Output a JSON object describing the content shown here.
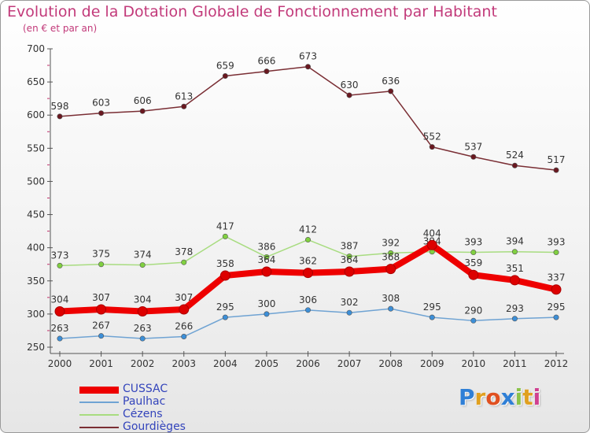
{
  "header": {
    "title": "Evolution de la Dotation Globale de Fonctionnement par Habitant",
    "subtitle": "(en € et par an)"
  },
  "logo": {
    "text": "Proxiti",
    "letters": [
      "P",
      "r",
      "o",
      "x",
      "i",
      "t",
      "i"
    ],
    "colors": [
      "#2f7fd6",
      "#e0a020",
      "#e05020",
      "#2f7fd6",
      "#8bc34a",
      "#e0a020",
      "#d04090"
    ]
  },
  "chart_data": {
    "type": "line",
    "title": "Evolution de la Dotation Globale de Fonctionnement par Habitant",
    "subtitle": "(en € et par an)",
    "x": [
      "2000",
      "2001",
      "2002",
      "2003",
      "2004",
      "2005",
      "2006",
      "2007",
      "2008",
      "2009",
      "2010",
      "2011",
      "2012"
    ],
    "ylim": [
      250,
      700
    ],
    "yticks": [
      250,
      300,
      350,
      400,
      450,
      500,
      550,
      600,
      650,
      700
    ],
    "grid": false,
    "legend_position": "bottom-left",
    "series": [
      {
        "name": "CUSSAC",
        "color": "#ee0000",
        "line_width": 8,
        "marker_color": "#dd0000",
        "values": [
          304,
          307,
          304,
          307,
          358,
          364,
          362,
          364,
          368,
          404,
          359,
          351,
          337
        ]
      },
      {
        "name": "Paulhac",
        "color": "#6fa3d3",
        "line_width": 1.5,
        "marker_color": "#3c8fd8",
        "values": [
          263,
          267,
          263,
          266,
          295,
          300,
          306,
          302,
          308,
          295,
          290,
          293,
          295
        ]
      },
      {
        "name": "Cézens",
        "color": "#a8dc80",
        "line_width": 1.5,
        "marker_color": "#80d040",
        "values": [
          373,
          375,
          374,
          378,
          417,
          386,
          412,
          387,
          392,
          394,
          393,
          394,
          393
        ]
      },
      {
        "name": "Gourdièges",
        "color": "#7a2e34",
        "line_width": 1.5,
        "marker_color": "#6a1820",
        "values": [
          598,
          603,
          606,
          613,
          659,
          666,
          673,
          630,
          636,
          552,
          537,
          524,
          517
        ]
      }
    ]
  }
}
